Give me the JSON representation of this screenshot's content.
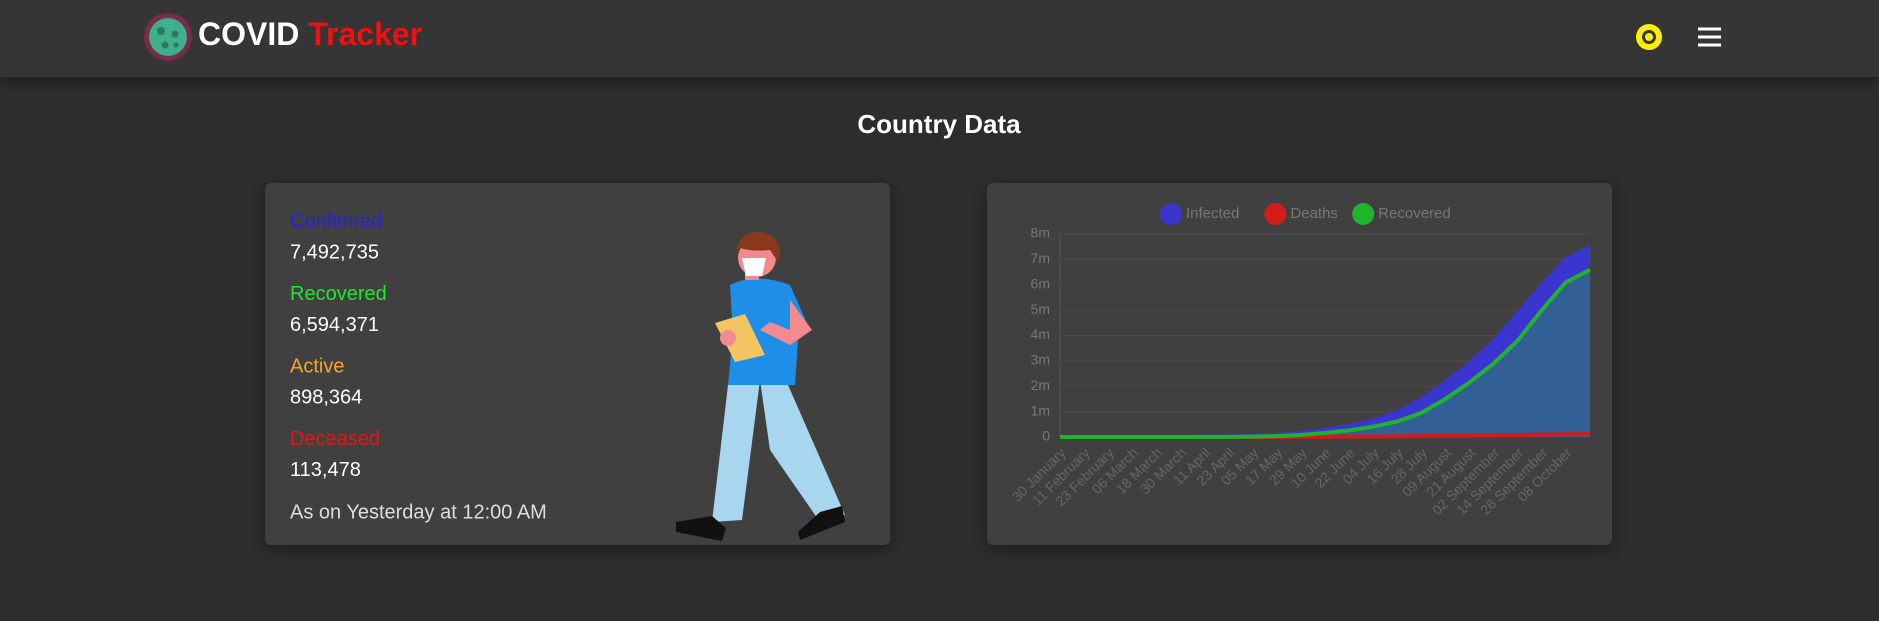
{
  "header": {
    "brand_first": "COVID",
    "brand_second": "Tracker"
  },
  "title": "Country Data",
  "stats": [
    {
      "label": "Confimred",
      "value": "7,492,735",
      "color": "#2b1de8"
    },
    {
      "label": "Recovered",
      "value": "6,594,371",
      "color": "#1ee82a"
    },
    {
      "label": "Active",
      "value": "898,364",
      "color": "#f5a623"
    },
    {
      "label": "Deceased",
      "value": "113,478",
      "color": "#ee1111"
    }
  ],
  "as_of": "As on Yesterday at 12:00 AM",
  "chart_data": {
    "type": "area",
    "legend": "top",
    "grid": true,
    "categories": [
      "30 January",
      "11 February",
      "23 February",
      "06 March",
      "18 March",
      "30 March",
      "11 April",
      "23 April",
      "05 May",
      "17 May",
      "29 May",
      "10 June",
      "22 June",
      "04 July",
      "16 July",
      "28 July",
      "09 August",
      "21 August",
      "02 September",
      "14 September",
      "26 September",
      "08 October",
      null
    ],
    "series": [
      {
        "name": "Infected",
        "color": "#3b35d0",
        "values": [
          0,
          0,
          0,
          0,
          0,
          1000,
          8000,
          20000,
          50000,
          90000,
          170000,
          280000,
          430000,
          650000,
          970000,
          1480000,
          2150000,
          2900000,
          3770000,
          4850000,
          5990000,
          7000000,
          7492735
        ]
      },
      {
        "name": "Deaths",
        "color": "#d51a1a",
        "values": [
          0,
          0,
          0,
          0,
          0,
          0,
          0,
          1000,
          2000,
          3000,
          5000,
          8000,
          13000,
          19000,
          25000,
          33000,
          44000,
          55000,
          67000,
          80000,
          95000,
          108000,
          113478
        ]
      },
      {
        "name": "Recovered",
        "color": "#22b32c",
        "values": [
          0,
          0,
          0,
          0,
          0,
          0,
          1000,
          4000,
          14000,
          34000,
          80000,
          160000,
          260000,
          410000,
          610000,
          950000,
          1500000,
          2150000,
          2900000,
          3800000,
          5000000,
          6100000,
          6594371
        ]
      }
    ],
    "ylim": [
      0,
      8000000
    ],
    "yticks": [
      0,
      {
        "value": 1000000,
        "label": "1m"
      },
      {
        "value": 2000000,
        "label": "2m"
      },
      {
        "value": 3000000,
        "label": "3m"
      },
      {
        "value": 4000000,
        "label": "4m"
      },
      {
        "value": 5000000,
        "label": "5m"
      },
      {
        "value": 6000000,
        "label": "6m"
      },
      {
        "value": 7000000,
        "label": "7m"
      },
      {
        "value": 8000000,
        "label": "8m"
      }
    ]
  }
}
